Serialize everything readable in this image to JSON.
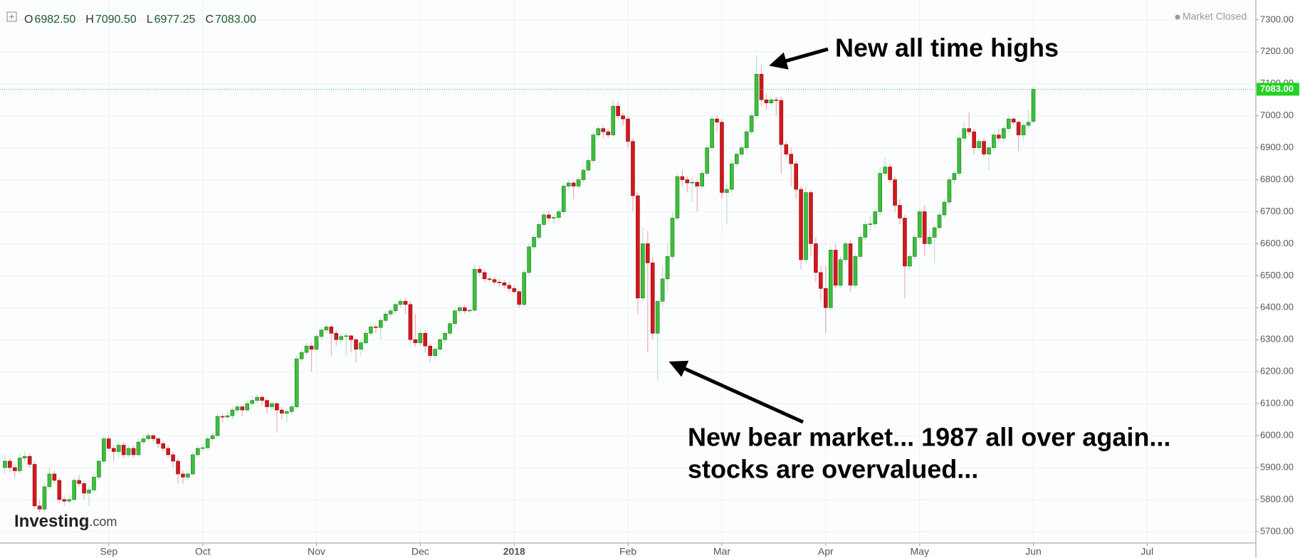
{
  "chart_data": {
    "type": "candlestick",
    "header": [
      {
        "key": "O",
        "value": "6982.50"
      },
      {
        "key": "H",
        "value": "7090.50"
      },
      {
        "key": "L",
        "value": "6977.25"
      },
      {
        "key": "C",
        "value": "7083.00"
      }
    ],
    "status": "Market Closed",
    "logo": {
      "brand": "Investing",
      "suffix": ".com"
    },
    "annotations": [
      "New all time highs",
      "New bear market... 1987 all over again...",
      "stocks are overvalued..."
    ],
    "up_color": "#3cbf3c",
    "down_color": "#d2181d",
    "last_price": {
      "value": 7083,
      "label": "7083.00",
      "color": "#22d322"
    },
    "grid": true,
    "xlim": [
      -1,
      253
    ],
    "xticks": [
      {
        "value": 21,
        "label": "Sep"
      },
      {
        "value": 40,
        "label": "Oct"
      },
      {
        "value": 63,
        "label": "Nov"
      },
      {
        "value": 84,
        "label": "Dec"
      },
      {
        "value": 103,
        "label": "2018"
      },
      {
        "value": 126,
        "label": "Feb"
      },
      {
        "value": 145,
        "label": "Mar"
      },
      {
        "value": 166,
        "label": "Apr"
      },
      {
        "value": 185,
        "label": "May"
      },
      {
        "value": 208,
        "label": "Jun"
      },
      {
        "value": 231,
        "label": "Jul"
      }
    ],
    "ylim": [
      5664,
      7362
    ],
    "yticks": [
      {
        "value": 5700,
        "label": "5700.00"
      },
      {
        "value": 5800,
        "label": "5800.00"
      },
      {
        "value": 5900,
        "label": "5900.00"
      },
      {
        "value": 6000,
        "label": "6000.00"
      },
      {
        "value": 6100,
        "label": "6100.00"
      },
      {
        "value": 6200,
        "label": "6200.00"
      },
      {
        "value": 6300,
        "label": "6300.00"
      },
      {
        "value": 6400,
        "label": "6400.00"
      },
      {
        "value": 6500,
        "label": "6500.00"
      },
      {
        "value": 6600,
        "label": "6600.00"
      },
      {
        "value": 6700,
        "label": "6700.00"
      },
      {
        "value": 6800,
        "label": "6800.00"
      },
      {
        "value": 6900,
        "label": "6900.00"
      },
      {
        "value": 7000,
        "label": "7000.00"
      },
      {
        "value": 7100,
        "label": "7100.00"
      },
      {
        "value": 7200,
        "label": "7200.00"
      },
      {
        "value": 7300,
        "label": "7300.00"
      }
    ],
    "ohlc": [
      [
        5900,
        5940,
        5880,
        5920
      ],
      [
        5920,
        5930,
        5885,
        5900
      ],
      [
        5900,
        5910,
        5870,
        5890
      ],
      [
        5890,
        5945,
        5880,
        5930
      ],
      [
        5930,
        5950,
        5920,
        5935
      ],
      [
        5935,
        5945,
        5900,
        5910
      ],
      [
        5910,
        5920,
        5770,
        5780
      ],
      [
        5780,
        5800,
        5760,
        5770
      ],
      [
        5770,
        5850,
        5760,
        5840
      ],
      [
        5840,
        5900,
        5830,
        5880
      ],
      [
        5880,
        5890,
        5850,
        5860
      ],
      [
        5860,
        5870,
        5790,
        5800
      ],
      [
        5800,
        5810,
        5780,
        5795
      ],
      [
        5795,
        5815,
        5790,
        5800
      ],
      [
        5800,
        5870,
        5795,
        5860
      ],
      [
        5860,
        5875,
        5840,
        5850
      ],
      [
        5850,
        5860,
        5800,
        5820
      ],
      [
        5820,
        5840,
        5780,
        5830
      ],
      [
        5830,
        5880,
        5820,
        5870
      ],
      [
        5870,
        5930,
        5860,
        5920
      ],
      [
        5920,
        6000,
        5910,
        5990
      ],
      [
        5990,
        6000,
        5950,
        5960
      ],
      [
        5960,
        5970,
        5920,
        5950
      ],
      [
        5950,
        5980,
        5930,
        5970
      ],
      [
        5970,
        5980,
        5930,
        5940
      ],
      [
        5940,
        5970,
        5930,
        5960
      ],
      [
        5960,
        5970,
        5930,
        5940
      ],
      [
        5940,
        5990,
        5935,
        5980
      ],
      [
        5980,
        6000,
        5970,
        5990
      ],
      [
        5990,
        6010,
        5980,
        6000
      ],
      [
        6000,
        6005,
        5980,
        5990
      ],
      [
        5990,
        5995,
        5960,
        5975
      ],
      [
        5975,
        5985,
        5950,
        5960
      ],
      [
        5960,
        5970,
        5930,
        5940
      ],
      [
        5940,
        5950,
        5900,
        5920
      ],
      [
        5920,
        5930,
        5850,
        5880
      ],
      [
        5880,
        5890,
        5850,
        5870
      ],
      [
        5870,
        5890,
        5860,
        5880
      ],
      [
        5880,
        5950,
        5875,
        5940
      ],
      [
        5940,
        5970,
        5930,
        5960
      ],
      [
        5960,
        5975,
        5950,
        5962
      ],
      [
        5962,
        6000,
        5955,
        5990
      ],
      [
        5990,
        6010,
        5980,
        6000
      ],
      [
        6000,
        6070,
        5995,
        6060
      ],
      [
        6060,
        6070,
        6040,
        6058
      ],
      [
        6058,
        6075,
        6050,
        6062
      ],
      [
        6062,
        6090,
        6050,
        6080
      ],
      [
        6080,
        6100,
        6070,
        6090
      ],
      [
        6090,
        6095,
        6060,
        6080
      ],
      [
        6080,
        6110,
        6075,
        6100
      ],
      [
        6100,
        6125,
        6095,
        6110
      ],
      [
        6110,
        6130,
        6100,
        6120
      ],
      [
        6120,
        6125,
        6095,
        6110
      ],
      [
        6110,
        6115,
        6070,
        6090
      ],
      [
        6090,
        6110,
        6080,
        6100
      ],
      [
        6100,
        6105,
        6010,
        6080
      ],
      [
        6080,
        6090,
        6050,
        6070
      ],
      [
        6070,
        6085,
        6040,
        6075
      ],
      [
        6075,
        6100,
        6065,
        6090
      ],
      [
        6090,
        6250,
        6085,
        6240
      ],
      [
        6240,
        6270,
        6230,
        6260
      ],
      [
        6260,
        6290,
        6250,
        6280
      ],
      [
        6280,
        6290,
        6200,
        6270
      ],
      [
        6270,
        6320,
        6265,
        6310
      ],
      [
        6310,
        6340,
        6300,
        6330
      ],
      [
        6330,
        6350,
        6320,
        6340
      ],
      [
        6340,
        6345,
        6250,
        6320
      ],
      [
        6320,
        6330,
        6280,
        6300
      ],
      [
        6300,
        6320,
        6290,
        6310
      ],
      [
        6310,
        6320,
        6250,
        6312
      ],
      [
        6312,
        6315,
        6260,
        6300
      ],
      [
        6300,
        6305,
        6230,
        6270
      ],
      [
        6270,
        6300,
        6250,
        6290
      ],
      [
        6290,
        6330,
        6285,
        6320
      ],
      [
        6320,
        6350,
        6310,
        6340
      ],
      [
        6340,
        6350,
        6320,
        6338
      ],
      [
        6338,
        6370,
        6300,
        6360
      ],
      [
        6360,
        6390,
        6350,
        6380
      ],
      [
        6380,
        6400,
        6370,
        6390
      ],
      [
        6390,
        6420,
        6380,
        6410
      ],
      [
        6410,
        6430,
        6400,
        6420
      ],
      [
        6420,
        6430,
        6380,
        6410
      ],
      [
        6410,
        6420,
        6290,
        6300
      ],
      [
        6300,
        6380,
        6280,
        6290
      ],
      [
        6290,
        6330,
        6280,
        6320
      ],
      [
        6320,
        6330,
        6260,
        6280
      ],
      [
        6280,
        6290,
        6230,
        6250
      ],
      [
        6250,
        6280,
        6240,
        6270
      ],
      [
        6270,
        6310,
        6260,
        6300
      ],
      [
        6300,
        6330,
        6290,
        6320
      ],
      [
        6320,
        6360,
        6310,
        6350
      ],
      [
        6350,
        6400,
        6340,
        6390
      ],
      [
        6390,
        6410,
        6380,
        6400
      ],
      [
        6400,
        6410,
        6380,
        6390
      ],
      [
        6390,
        6395,
        6380,
        6392
      ],
      [
        6392,
        6540,
        6385,
        6520
      ],
      [
        6520,
        6530,
        6500,
        6510
      ],
      [
        6510,
        6520,
        6480,
        6490
      ],
      [
        6490,
        6500,
        6480,
        6488
      ],
      [
        6488,
        6495,
        6470,
        6480
      ],
      [
        6480,
        6490,
        6465,
        6478
      ],
      [
        6478,
        6485,
        6460,
        6470
      ],
      [
        6470,
        6480,
        6450,
        6460
      ],
      [
        6460,
        6470,
        6445,
        6450
      ],
      [
        6450,
        6455,
        6400,
        6410
      ],
      [
        6410,
        6520,
        6405,
        6510
      ],
      [
        6510,
        6600,
        6500,
        6590
      ],
      [
        6590,
        6630,
        6580,
        6620
      ],
      [
        6620,
        6670,
        6610,
        6660
      ],
      [
        6660,
        6700,
        6650,
        6690
      ],
      [
        6690,
        6700,
        6670,
        6680
      ],
      [
        6680,
        6690,
        6660,
        6682
      ],
      [
        6682,
        6710,
        6670,
        6700
      ],
      [
        6700,
        6790,
        6690,
        6780
      ],
      [
        6780,
        6800,
        6770,
        6790
      ],
      [
        6790,
        6795,
        6740,
        6780
      ],
      [
        6780,
        6810,
        6770,
        6800
      ],
      [
        6800,
        6840,
        6790,
        6830
      ],
      [
        6830,
        6870,
        6820,
        6860
      ],
      [
        6860,
        6950,
        6850,
        6940
      ],
      [
        6940,
        6970,
        6930,
        6960
      ],
      [
        6960,
        6970,
        6930,
        6950
      ],
      [
        6950,
        6960,
        6930,
        6940
      ],
      [
        6940,
        7050,
        6935,
        7030
      ],
      [
        7030,
        7045,
        6990,
        7000
      ],
      [
        7000,
        7010,
        6970,
        6990
      ],
      [
        6990,
        7000,
        6900,
        6920
      ],
      [
        6920,
        6930,
        6700,
        6750
      ],
      [
        6750,
        6760,
        6380,
        6430
      ],
      [
        6430,
        6650,
        6420,
        6600
      ],
      [
        6600,
        6640,
        6260,
        6540
      ],
      [
        6540,
        6560,
        6300,
        6320
      ],
      [
        6320,
        6420,
        6170,
        6420
      ],
      [
        6420,
        6530,
        6400,
        6490
      ],
      [
        6490,
        6600,
        6450,
        6560
      ],
      [
        6560,
        6700,
        6550,
        6680
      ],
      [
        6680,
        6820,
        6670,
        6810
      ],
      [
        6810,
        6830,
        6780,
        6800
      ],
      [
        6800,
        6810,
        6760,
        6790
      ],
      [
        6790,
        6810,
        6730,
        6792
      ],
      [
        6792,
        6800,
        6700,
        6780
      ],
      [
        6780,
        6830,
        6770,
        6820
      ],
      [
        6820,
        6910,
        6810,
        6900
      ],
      [
        6900,
        7000,
        6890,
        6990
      ],
      [
        6990,
        7000,
        6950,
        6980
      ],
      [
        6980,
        6990,
        6740,
        6760
      ],
      [
        6760,
        6790,
        6660,
        6770
      ],
      [
        6770,
        6860,
        6760,
        6850
      ],
      [
        6850,
        6890,
        6840,
        6880
      ],
      [
        6880,
        6910,
        6870,
        6900
      ],
      [
        6900,
        6960,
        6890,
        6950
      ],
      [
        6950,
        7010,
        6940,
        7000
      ],
      [
        7000,
        7190,
        6990,
        7130
      ],
      [
        7130,
        7160,
        7030,
        7050
      ],
      [
        7050,
        7070,
        7020,
        7040
      ],
      [
        7040,
        7060,
        7030,
        7050
      ],
      [
        7050,
        7060,
        7000,
        7048
      ],
      [
        7048,
        7060,
        6820,
        6910
      ],
      [
        6910,
        6920,
        6870,
        6880
      ],
      [
        6880,
        6900,
        6780,
        6850
      ],
      [
        6850,
        6860,
        6740,
        6770
      ],
      [
        6770,
        6780,
        6520,
        6550
      ],
      [
        6550,
        6780,
        6540,
        6760
      ],
      [
        6760,
        6770,
        6560,
        6600
      ],
      [
        6600,
        6620,
        6480,
        6510
      ],
      [
        6510,
        6530,
        6420,
        6460
      ],
      [
        6460,
        6530,
        6320,
        6400
      ],
      [
        6400,
        6590,
        6390,
        6580
      ],
      [
        6580,
        6600,
        6460,
        6470
      ],
      [
        6470,
        6560,
        6460,
        6550
      ],
      [
        6550,
        6610,
        6540,
        6600
      ],
      [
        6600,
        6610,
        6450,
        6470
      ],
      [
        6470,
        6570,
        6460,
        6560
      ],
      [
        6560,
        6630,
        6550,
        6620
      ],
      [
        6620,
        6670,
        6610,
        6660
      ],
      [
        6660,
        6690,
        6640,
        6662
      ],
      [
        6662,
        6710,
        6650,
        6700
      ],
      [
        6700,
        6840,
        6690,
        6820
      ],
      [
        6820,
        6870,
        6810,
        6840
      ],
      [
        6840,
        6850,
        6790,
        6800
      ],
      [
        6800,
        6810,
        6700,
        6720
      ],
      [
        6720,
        6740,
        6660,
        6680
      ],
      [
        6680,
        6690,
        6430,
        6530
      ],
      [
        6530,
        6570,
        6520,
        6560
      ],
      [
        6560,
        6630,
        6550,
        6620
      ],
      [
        6620,
        6710,
        6610,
        6700
      ],
      [
        6700,
        6720,
        6560,
        6600
      ],
      [
        6600,
        6640,
        6590,
        6620
      ],
      [
        6620,
        6660,
        6540,
        6650
      ],
      [
        6650,
        6700,
        6640,
        6690
      ],
      [
        6690,
        6740,
        6680,
        6730
      ],
      [
        6730,
        6810,
        6720,
        6800
      ],
      [
        6800,
        6830,
        6790,
        6820
      ],
      [
        6820,
        6940,
        6810,
        6930
      ],
      [
        6930,
        6980,
        6920,
        6960
      ],
      [
        6960,
        7010,
        6940,
        6950
      ],
      [
        6950,
        6960,
        6880,
        6900
      ],
      [
        6900,
        6930,
        6890,
        6920
      ],
      [
        6920,
        6930,
        6870,
        6880
      ],
      [
        6880,
        6910,
        6830,
        6900
      ],
      [
        6900,
        6950,
        6890,
        6940
      ],
      [
        6940,
        6960,
        6920,
        6930
      ],
      [
        6930,
        6970,
        6920,
        6960
      ],
      [
        6960,
        7000,
        6950,
        6990
      ],
      [
        6990,
        6995,
        6970,
        6980
      ],
      [
        6980,
        6985,
        6890,
        6940
      ],
      [
        6940,
        6980,
        6920,
        6970
      ],
      [
        6970,
        7020,
        6960,
        6980
      ],
      [
        6982.5,
        7090.5,
        6977.25,
        7083
      ]
    ]
  }
}
